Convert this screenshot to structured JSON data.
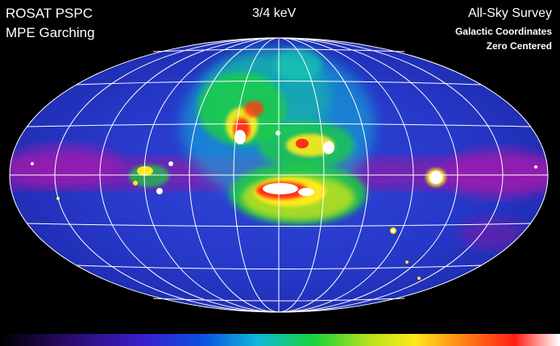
{
  "header": {
    "instrument": "ROSAT PSPC",
    "institute": "MPE Garching",
    "energy": "3/4 keV",
    "survey": "All-Sky Survey",
    "coordinates": "Galactic Coordinates",
    "centering": "Zero Centered"
  },
  "map": {
    "projection": "Aitoff (all-sky ellipse)",
    "background_color": "#1f2fc8",
    "grid_color": "#ffffff"
  },
  "colorbar": {
    "colors": [
      "#000000",
      "#2a0a6a",
      "#3a1cc8",
      "#0a4fe0",
      "#0fb7d8",
      "#19d23a",
      "#b6e21c",
      "#ffe81a",
      "#ff8a14",
      "#ff1e14",
      "#ffffff"
    ]
  }
}
